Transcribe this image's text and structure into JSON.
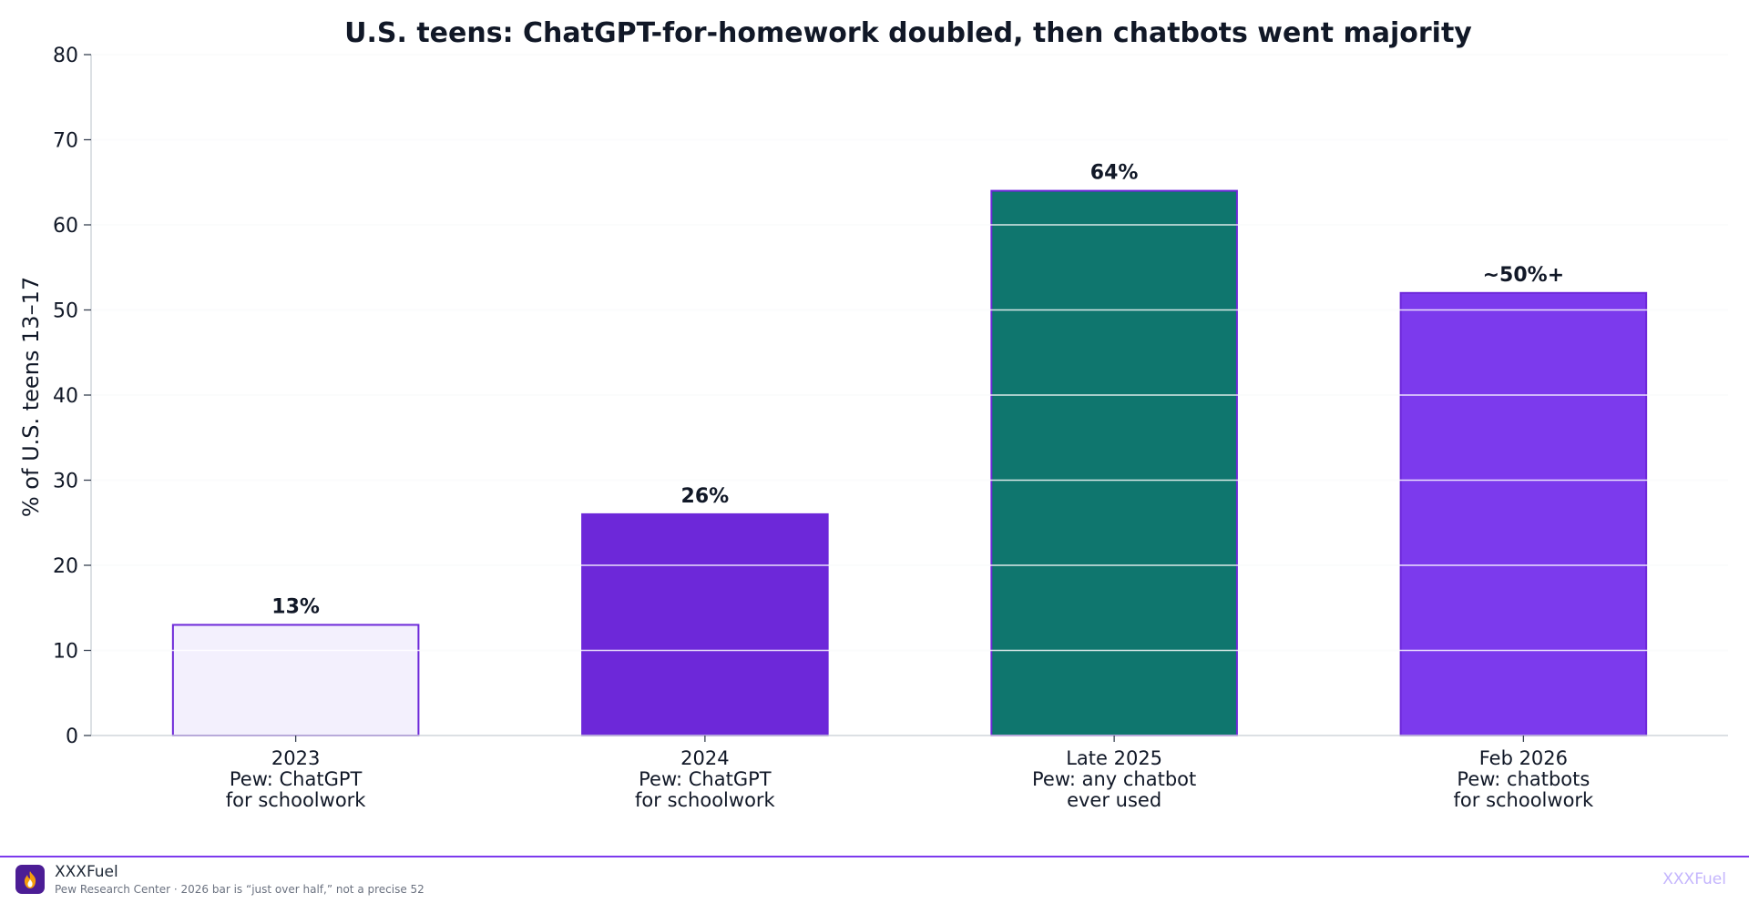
{
  "chart_data": {
    "type": "bar",
    "title": "U.S. teens: ChatGPT-for-homework doubled, then chatbots went majority",
    "ylabel": "% of U.S. teens 13–17",
    "xlabel": "",
    "ylim": [
      0,
      80
    ],
    "yticks": [
      0,
      10,
      20,
      30,
      40,
      50,
      60,
      70,
      80
    ],
    "grid": true,
    "categories": [
      [
        "2023",
        "Pew: ChatGPT",
        "for schoolwork"
      ],
      [
        "2024",
        "Pew: ChatGPT",
        "for schoolwork"
      ],
      [
        "Late 2025",
        "Pew: any chatbot",
        "ever used"
      ],
      [
        "Feb 2026",
        "Pew: chatbots",
        "for schoolwork"
      ]
    ],
    "values": [
      13,
      26,
      64,
      52
    ],
    "labels": [
      "13%",
      "26%",
      "64%",
      "~50%+"
    ],
    "colors": [
      "#f3f0fd",
      "#6d28d9",
      "#0f766e",
      "#7c3aed"
    ],
    "edge_color": "#6d28d9"
  },
  "footer": {
    "brand": "XXXFuel",
    "source": "Pew Research Center  ·  2026 bar is “just over half,” not a precise 52",
    "watermark": "XXXFuel"
  }
}
